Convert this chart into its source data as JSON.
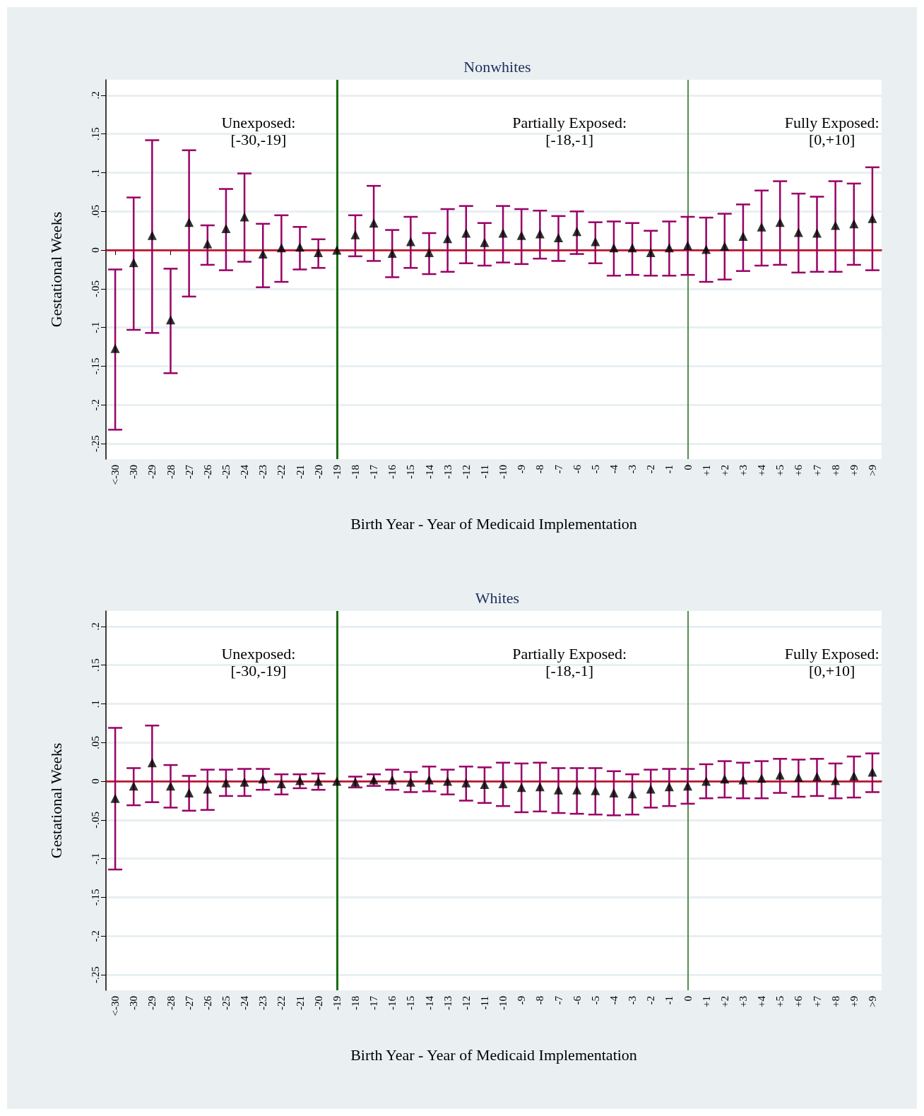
{
  "chart_data": [
    {
      "type": "scatter",
      "title": "Nonwhites",
      "xlabel": "Birth Year - Year of Medicaid Implementation",
      "ylabel": "Gestational Weeks",
      "categories": [
        "<-30",
        "-30",
        "-29",
        "-28",
        "-27",
        "-26",
        "-25",
        "-24",
        "-23",
        "-22",
        "-21",
        "-20",
        "-19",
        "-18",
        "-17",
        "-16",
        "-15",
        "-14",
        "-13",
        "-12",
        "-11",
        "-10",
        "-9",
        "-8",
        "-7",
        "-6",
        "-5",
        "-4",
        "-3",
        "-2",
        "-1",
        "0",
        "+1",
        "+2",
        "+3",
        "+4",
        "+5",
        "+6",
        "+7",
        "+8",
        "+9",
        ">9"
      ],
      "series": [
        {
          "color": "#000000",
          "values": [
            -0.127,
            -0.016,
            0.019,
            -0.09,
            0.036,
            0.008,
            0.028,
            0.043,
            -0.005,
            0.003,
            0.004,
            -0.003,
            0,
            0.02,
            0.035,
            -0.004,
            0.011,
            -0.003,
            0.015,
            0.022,
            0.01,
            0.022,
            0.019,
            0.021,
            0.016,
            0.024,
            0.011,
            0.003,
            0.003,
            -0.003,
            0.003,
            0.006,
            0.001,
            0.005,
            0.018,
            0.03,
            0.036,
            0.023,
            0.022,
            0.032,
            0.034,
            0.041
          ],
          "errors": [
            [
              -0.232,
              -0.025
            ],
            [
              -0.103,
              0.068
            ],
            [
              -0.107,
              0.142
            ],
            [
              -0.159,
              -0.024
            ],
            [
              -0.06,
              0.129
            ],
            [
              -0.019,
              0.032
            ],
            [
              -0.026,
              0.079
            ],
            [
              -0.015,
              0.099
            ],
            [
              -0.048,
              0.034
            ],
            [
              -0.041,
              0.045
            ],
            [
              -0.025,
              0.03
            ],
            [
              -0.023,
              0.014
            ],
            null,
            [
              -0.008,
              0.045
            ],
            [
              -0.014,
              0.083
            ],
            [
              -0.035,
              0.026
            ],
            [
              -0.023,
              0.043
            ],
            [
              -0.031,
              0.022
            ],
            [
              -0.028,
              0.053
            ],
            [
              -0.017,
              0.057
            ],
            [
              -0.02,
              0.035
            ],
            [
              -0.016,
              0.057
            ],
            [
              -0.018,
              0.053
            ],
            [
              -0.011,
              0.051
            ],
            [
              -0.014,
              0.044
            ],
            [
              -0.005,
              0.05
            ],
            [
              -0.017,
              0.036
            ],
            [
              -0.033,
              0.037
            ],
            [
              -0.032,
              0.035
            ],
            [
              -0.033,
              0.025
            ],
            [
              -0.033,
              0.037
            ],
            [
              -0.032,
              0.043
            ],
            [
              -0.041,
              0.042
            ],
            [
              -0.038,
              0.047
            ],
            [
              -0.027,
              0.059
            ],
            [
              -0.02,
              0.077
            ],
            [
              -0.019,
              0.089
            ],
            [
              -0.029,
              0.073
            ],
            [
              -0.028,
              0.069
            ],
            [
              -0.028,
              0.089
            ],
            [
              -0.019,
              0.086
            ],
            [
              -0.026,
              0.107
            ]
          ]
        }
      ],
      "ylim": [
        -0.27,
        0.22
      ],
      "yticks": [
        {
          "value": -0.25,
          "label": "-.25"
        },
        {
          "value": -0.2,
          "label": "-.2"
        },
        {
          "value": -0.15,
          "label": "-.15"
        },
        {
          "value": -0.1,
          "label": "-.1"
        },
        {
          "value": -0.05,
          "label": "-.05"
        },
        0,
        {
          "value": 0.05,
          "label": ".05"
        },
        {
          "value": 0.1,
          "label": ".1"
        },
        {
          "value": 0.15,
          "label": ".15"
        },
        {
          "value": 0.2,
          "label": ".2"
        }
      ],
      "grid": "y",
      "marker": "triangle",
      "ref_lines": [
        {
          "axis": "y",
          "value": 0,
          "color": "#c8102e"
        },
        {
          "axis": "x",
          "value": "-19",
          "color": "#1b6b12"
        },
        {
          "axis": "x",
          "value": "0",
          "color": "#1b6b12"
        }
      ],
      "annotations": [
        "Unexposed:\n[-30,-19]",
        "Partially Exposed:\n[-18,-1]",
        "Fully Exposed:\n[0,+10]"
      ]
    },
    {
      "type": "scatter",
      "title": "Whites",
      "xlabel": "Birth Year - Year of Medicaid Implementation",
      "ylabel": "Gestational Weeks",
      "categories": [
        "<-30",
        "-30",
        "-29",
        "-28",
        "-27",
        "-26",
        "-25",
        "-24",
        "-23",
        "-22",
        "-21",
        "-20",
        "-19",
        "-18",
        "-17",
        "-16",
        "-15",
        "-14",
        "-13",
        "-12",
        "-11",
        "-10",
        "-9",
        "-8",
        "-7",
        "-6",
        "-5",
        "-4",
        "-3",
        "-2",
        "-1",
        "0",
        "+1",
        "+2",
        "+3",
        "+4",
        "+5",
        "+6",
        "+7",
        "+8",
        "+9",
        ">9"
      ],
      "series": [
        {
          "color": "#000000",
          "values": [
            -0.022,
            -0.006,
            0.024,
            -0.006,
            -0.015,
            -0.01,
            -0.002,
            -0.001,
            0.003,
            -0.003,
            0.001,
            0,
            0,
            -0.001,
            0.002,
            0.002,
            -0.001,
            0.002,
            0,
            -0.002,
            -0.004,
            -0.003,
            -0.008,
            -0.007,
            -0.011,
            -0.011,
            -0.012,
            -0.015,
            -0.016,
            -0.01,
            -0.007,
            -0.006,
            0,
            0.003,
            0.002,
            0.004,
            0.008,
            0.005,
            0.006,
            0.001,
            0.007,
            0.012
          ],
          "errors": [
            [
              -0.114,
              0.069
            ],
            [
              -0.031,
              0.017
            ],
            [
              -0.027,
              0.072
            ],
            [
              -0.034,
              0.021
            ],
            [
              -0.038,
              0.007
            ],
            [
              -0.037,
              0.015
            ],
            [
              -0.019,
              0.015
            ],
            [
              -0.019,
              0.016
            ],
            [
              -0.011,
              0.016
            ],
            [
              -0.017,
              0.009
            ],
            [
              -0.009,
              0.009
            ],
            [
              -0.011,
              0.01
            ],
            null,
            [
              -0.008,
              0.006
            ],
            [
              -0.006,
              0.009
            ],
            [
              -0.011,
              0.015
            ],
            [
              -0.014,
              0.012
            ],
            [
              -0.013,
              0.019
            ],
            [
              -0.017,
              0.015
            ],
            [
              -0.025,
              0.019
            ],
            [
              -0.028,
              0.018
            ],
            [
              -0.032,
              0.024
            ],
            [
              -0.04,
              0.023
            ],
            [
              -0.039,
              0.024
            ],
            [
              -0.041,
              0.017
            ],
            [
              -0.042,
              0.017
            ],
            [
              -0.043,
              0.017
            ],
            [
              -0.044,
              0.013
            ],
            [
              -0.043,
              0.009
            ],
            [
              -0.034,
              0.015
            ],
            [
              -0.032,
              0.016
            ],
            [
              -0.029,
              0.016
            ],
            [
              -0.022,
              0.022
            ],
            [
              -0.021,
              0.026
            ],
            [
              -0.022,
              0.024
            ],
            [
              -0.022,
              0.026
            ],
            [
              -0.015,
              0.029
            ],
            [
              -0.02,
              0.028
            ],
            [
              -0.019,
              0.029
            ],
            [
              -0.022,
              0.023
            ],
            [
              -0.021,
              0.032
            ],
            [
              -0.014,
              0.036
            ]
          ]
        }
      ],
      "ylim": [
        -0.27,
        0.22
      ],
      "yticks": [
        {
          "value": -0.25,
          "label": "-.25"
        },
        {
          "value": -0.2,
          "label": "-.2"
        },
        {
          "value": -0.15,
          "label": "-.15"
        },
        {
          "value": -0.1,
          "label": "-.1"
        },
        {
          "value": -0.05,
          "label": "-.05"
        },
        0,
        {
          "value": 0.05,
          "label": ".05"
        },
        {
          "value": 0.1,
          "label": ".1"
        },
        {
          "value": 0.15,
          "label": ".15"
        },
        {
          "value": 0.2,
          "label": ".2"
        }
      ],
      "grid": "y",
      "marker": "triangle",
      "ref_lines": [
        {
          "axis": "y",
          "value": 0,
          "color": "#c8102e"
        },
        {
          "axis": "x",
          "value": "-19",
          "color": "#1b6b12"
        },
        {
          "axis": "x",
          "value": "0",
          "color": "#1b6b12"
        }
      ],
      "annotations": [
        "Unexposed:\n[-30,-19]",
        "Partially Exposed:\n[-18,-1]",
        "Fully Exposed:\n[0,+10]"
      ]
    }
  ]
}
